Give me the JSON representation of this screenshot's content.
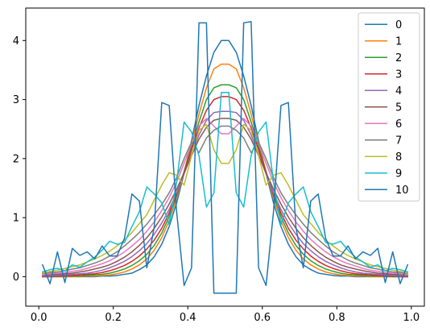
{
  "chart_data": {
    "type": "line",
    "title": "",
    "xlabel": "",
    "ylabel": "",
    "xlim": [
      -0.035,
      1.035
    ],
    "ylim": [
      -0.5,
      4.55
    ],
    "grid": false,
    "legend_position": "top-right",
    "x_ticks": [
      0.0,
      0.2,
      0.4,
      0.6,
      0.8,
      1.0
    ],
    "x_tick_labels": [
      "0.0",
      "0.2",
      "0.4",
      "0.6",
      "0.8",
      "1.0"
    ],
    "y_ticks": [
      0,
      1,
      2,
      3,
      4
    ],
    "y_tick_labels": [
      "0",
      "1",
      "2",
      "3",
      "4"
    ],
    "x": [
      0.01,
      0.03,
      0.05,
      0.07,
      0.09,
      0.11,
      0.13,
      0.15,
      0.17,
      0.19,
      0.21,
      0.23,
      0.25,
      0.27,
      0.29,
      0.31,
      0.33,
      0.35,
      0.37,
      0.39,
      0.41,
      0.43,
      0.45,
      0.47,
      0.49,
      0.51,
      0.53,
      0.55,
      0.57,
      0.59,
      0.61,
      0.63,
      0.65,
      0.67,
      0.69,
      0.71,
      0.73,
      0.75,
      0.77,
      0.79,
      0.81,
      0.83,
      0.85,
      0.87,
      0.89,
      0.91,
      0.93,
      0.95,
      0.97,
      0.99
    ],
    "series": [
      {
        "name": "0",
        "color": "#1f77b4",
        "values": [
          0.0,
          0.0,
          0.0,
          0.0,
          0.0,
          0.0,
          0.0,
          0.0,
          0.01,
          0.01,
          0.02,
          0.04,
          0.06,
          0.12,
          0.2,
          0.34,
          0.55,
          0.85,
          1.25,
          1.75,
          2.3,
          2.9,
          3.4,
          3.8,
          4.0,
          4.0,
          3.8,
          3.4,
          2.9,
          2.3,
          1.75,
          1.25,
          0.85,
          0.55,
          0.34,
          0.2,
          0.12,
          0.06,
          0.04,
          0.02,
          0.01,
          0.01,
          0.0,
          0.0,
          0.0,
          0.0,
          0.0,
          0.0,
          0.0,
          0.0
        ]
      },
      {
        "name": "1",
        "color": "#ff7f0e",
        "values": [
          0.0,
          0.0,
          0.0,
          0.0,
          0.0,
          0.0,
          0.01,
          0.01,
          0.02,
          0.03,
          0.05,
          0.08,
          0.13,
          0.2,
          0.3,
          0.45,
          0.66,
          0.95,
          1.32,
          1.78,
          2.25,
          2.75,
          3.2,
          3.52,
          3.6,
          3.6,
          3.52,
          3.2,
          2.75,
          2.25,
          1.78,
          1.32,
          0.95,
          0.66,
          0.45,
          0.3,
          0.2,
          0.13,
          0.08,
          0.05,
          0.03,
          0.02,
          0.01,
          0.01,
          0.0,
          0.0,
          0.0,
          0.0,
          0.0,
          0.0
        ]
      },
      {
        "name": "2",
        "color": "#2ca02c",
        "values": [
          0.0,
          0.0,
          0.0,
          0.01,
          0.01,
          0.01,
          0.02,
          0.03,
          0.04,
          0.06,
          0.09,
          0.13,
          0.19,
          0.27,
          0.38,
          0.53,
          0.74,
          1.02,
          1.37,
          1.78,
          2.2,
          2.62,
          3.0,
          3.2,
          3.25,
          3.25,
          3.2,
          3.0,
          2.62,
          2.2,
          1.78,
          1.37,
          1.02,
          0.74,
          0.53,
          0.38,
          0.27,
          0.19,
          0.13,
          0.09,
          0.06,
          0.04,
          0.03,
          0.02,
          0.01,
          0.01,
          0.01,
          0.0,
          0.0,
          0.0
        ]
      },
      {
        "name": "3",
        "color": "#d62728",
        "values": [
          0.0,
          0.0,
          0.01,
          0.01,
          0.02,
          0.03,
          0.04,
          0.05,
          0.07,
          0.1,
          0.14,
          0.19,
          0.26,
          0.35,
          0.47,
          0.62,
          0.82,
          1.08,
          1.4,
          1.77,
          2.15,
          2.52,
          2.82,
          3.0,
          3.05,
          3.05,
          3.0,
          2.82,
          2.52,
          2.15,
          1.77,
          1.4,
          1.08,
          0.82,
          0.62,
          0.47,
          0.35,
          0.26,
          0.19,
          0.14,
          0.1,
          0.07,
          0.05,
          0.04,
          0.03,
          0.02,
          0.01,
          0.01,
          0.0,
          0.0
        ]
      },
      {
        "name": "4",
        "color": "#9467bd",
        "values": [
          0.01,
          0.01,
          0.02,
          0.03,
          0.04,
          0.05,
          0.06,
          0.08,
          0.11,
          0.15,
          0.2,
          0.26,
          0.34,
          0.44,
          0.56,
          0.72,
          0.91,
          1.14,
          1.42,
          1.74,
          2.08,
          2.4,
          2.65,
          2.78,
          2.8,
          2.8,
          2.78,
          2.65,
          2.4,
          2.08,
          1.74,
          1.42,
          1.14,
          0.91,
          0.72,
          0.56,
          0.44,
          0.34,
          0.26,
          0.2,
          0.15,
          0.11,
          0.08,
          0.06,
          0.05,
          0.04,
          0.03,
          0.02,
          0.01,
          0.01
        ]
      },
      {
        "name": "5",
        "color": "#8c564b",
        "values": [
          0.02,
          0.03,
          0.04,
          0.05,
          0.06,
          0.08,
          0.1,
          0.13,
          0.16,
          0.2,
          0.26,
          0.33,
          0.42,
          0.53,
          0.66,
          0.82,
          1.01,
          1.23,
          1.48,
          1.76,
          2.05,
          2.33,
          2.53,
          2.65,
          2.68,
          2.68,
          2.65,
          2.53,
          2.33,
          2.05,
          1.76,
          1.48,
          1.23,
          1.01,
          0.82,
          0.66,
          0.53,
          0.42,
          0.33,
          0.26,
          0.2,
          0.16,
          0.13,
          0.1,
          0.08,
          0.06,
          0.05,
          0.04,
          0.03,
          0.02
        ]
      },
      {
        "name": "6",
        "color": "#e377c2",
        "values": [
          0.03,
          0.05,
          0.06,
          0.07,
          0.09,
          0.11,
          0.14,
          0.18,
          0.22,
          0.27,
          0.34,
          0.42,
          0.52,
          0.63,
          0.77,
          0.93,
          1.12,
          1.34,
          1.6,
          1.92,
          2.25,
          2.55,
          2.68,
          2.55,
          2.42,
          2.42,
          2.55,
          2.68,
          2.55,
          2.25,
          1.92,
          1.6,
          1.34,
          1.12,
          0.93,
          0.77,
          0.63,
          0.52,
          0.42,
          0.34,
          0.27,
          0.22,
          0.18,
          0.14,
          0.11,
          0.09,
          0.07,
          0.06,
          0.05,
          0.03
        ]
      },
      {
        "name": "7",
        "color": "#7f7f7f",
        "values": [
          0.05,
          0.07,
          0.08,
          0.1,
          0.13,
          0.15,
          0.19,
          0.23,
          0.28,
          0.35,
          0.42,
          0.52,
          0.63,
          0.75,
          0.89,
          1.05,
          1.22,
          1.42,
          1.68,
          2.0,
          2.28,
          2.1,
          2.35,
          2.48,
          2.55,
          2.55,
          2.48,
          2.35,
          2.1,
          2.28,
          2.0,
          1.68,
          1.42,
          1.22,
          1.05,
          0.89,
          0.75,
          0.63,
          0.52,
          0.42,
          0.35,
          0.28,
          0.23,
          0.19,
          0.15,
          0.13,
          0.1,
          0.08,
          0.07,
          0.05
        ]
      },
      {
        "name": "8",
        "color": "#bcbd22",
        "values": [
          0.06,
          0.09,
          0.11,
          0.14,
          0.17,
          0.2,
          0.25,
          0.3,
          0.36,
          0.43,
          0.52,
          0.62,
          0.75,
          0.9,
          1.05,
          1.3,
          1.55,
          1.76,
          1.72,
          1.55,
          2.05,
          2.48,
          2.58,
          2.15,
          1.92,
          1.92,
          2.15,
          2.58,
          2.48,
          2.05,
          1.55,
          1.72,
          1.76,
          1.55,
          1.3,
          1.05,
          0.9,
          0.75,
          0.62,
          0.52,
          0.43,
          0.36,
          0.3,
          0.25,
          0.2,
          0.17,
          0.14,
          0.11,
          0.09,
          0.06
        ]
      },
      {
        "name": "9",
        "color": "#17becf",
        "values": [
          0.08,
          0.12,
          0.14,
          0.1,
          0.2,
          0.16,
          0.25,
          0.33,
          0.45,
          0.6,
          0.55,
          0.58,
          0.85,
          1.1,
          1.52,
          1.4,
          1.25,
          0.88,
          1.6,
          2.62,
          2.45,
          2.05,
          1.18,
          1.42,
          3.12,
          3.12,
          1.42,
          1.18,
          2.05,
          2.45,
          2.62,
          1.6,
          0.88,
          1.25,
          1.4,
          1.52,
          1.1,
          0.85,
          0.58,
          0.55,
          0.6,
          0.45,
          0.33,
          0.25,
          0.16,
          0.2,
          0.1,
          0.14,
          0.12,
          0.08
        ]
      },
      {
        "name": "10",
        "color": "#1f77b4",
        "values": [
          0.2,
          -0.12,
          0.42,
          -0.1,
          0.48,
          0.36,
          0.42,
          0.3,
          0.52,
          0.35,
          0.35,
          0.65,
          1.4,
          1.28,
          0.15,
          0.85,
          2.95,
          2.9,
          1.1,
          -0.15,
          0.15,
          4.3,
          4.3,
          -0.28,
          -0.28,
          -0.28,
          -0.28,
          4.3,
          4.32,
          0.15,
          -0.15,
          1.1,
          2.9,
          2.95,
          0.85,
          0.15,
          1.28,
          1.4,
          0.65,
          0.35,
          0.35,
          0.52,
          0.3,
          0.42,
          0.36,
          0.48,
          -0.1,
          0.42,
          -0.12,
          0.2
        ]
      }
    ]
  }
}
